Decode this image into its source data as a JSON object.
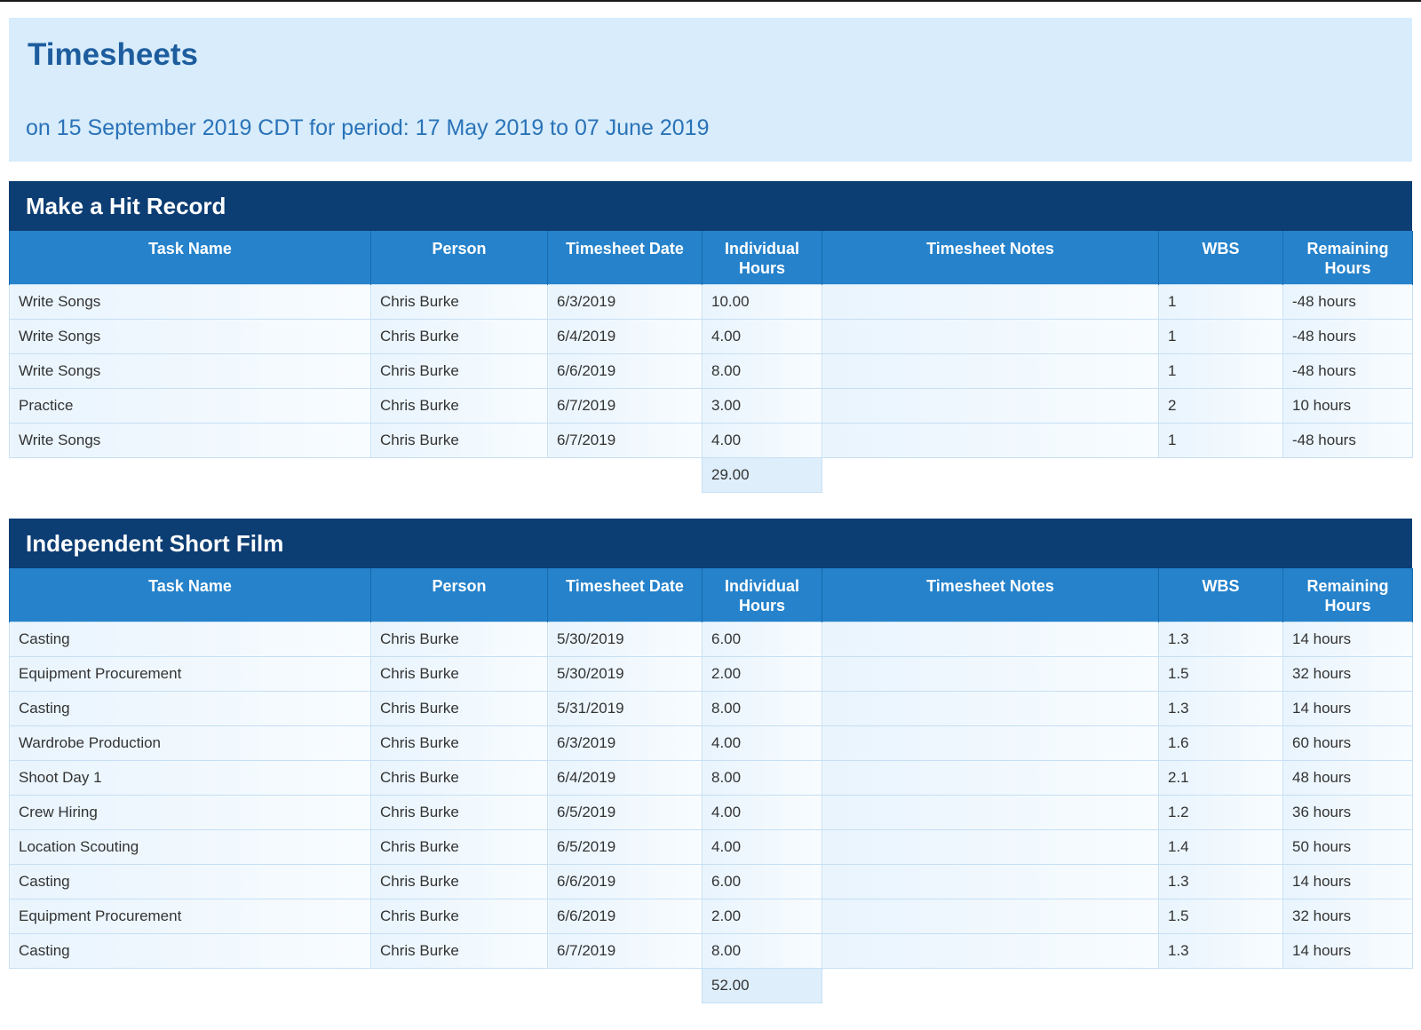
{
  "header": {
    "title": "Timesheets",
    "subtitle": "on 15 September 2019 CDT for period: 17 May 2019 to 07 June 2019"
  },
  "columns": {
    "task": "Task Name",
    "person": "Person",
    "date": "Timesheet Date",
    "hours_line1": "Individual",
    "hours_line2": "Hours",
    "notes": "Timesheet Notes",
    "wbs": "WBS",
    "remaining_line1": "Remaining",
    "remaining_line2": "Hours"
  },
  "projects": [
    {
      "name": "Make a Hit Record",
      "total": "29.00",
      "rows": [
        {
          "task": "Write Songs",
          "person": "Chris Burke",
          "date": "6/3/2019",
          "hours": "10.00",
          "notes": "",
          "wbs": "1",
          "remaining": "-48 hours"
        },
        {
          "task": "Write Songs",
          "person": "Chris Burke",
          "date": "6/4/2019",
          "hours": "4.00",
          "notes": "",
          "wbs": "1",
          "remaining": "-48 hours"
        },
        {
          "task": "Write Songs",
          "person": "Chris Burke",
          "date": "6/6/2019",
          "hours": "8.00",
          "notes": "",
          "wbs": "1",
          "remaining": "-48 hours"
        },
        {
          "task": "Practice",
          "person": "Chris Burke",
          "date": "6/7/2019",
          "hours": "3.00",
          "notes": "",
          "wbs": "2",
          "remaining": "10 hours"
        },
        {
          "task": "Write Songs",
          "person": "Chris Burke",
          "date": "6/7/2019",
          "hours": "4.00",
          "notes": "",
          "wbs": "1",
          "remaining": "-48 hours"
        }
      ]
    },
    {
      "name": "Independent Short Film",
      "total": "52.00",
      "rows": [
        {
          "task": "Casting",
          "person": "Chris Burke",
          "date": "5/30/2019",
          "hours": "6.00",
          "notes": "",
          "wbs": "1.3",
          "remaining": "14 hours"
        },
        {
          "task": "Equipment Procurement",
          "person": "Chris Burke",
          "date": "5/30/2019",
          "hours": "2.00",
          "notes": "",
          "wbs": "1.5",
          "remaining": "32 hours"
        },
        {
          "task": "Casting",
          "person": "Chris Burke",
          "date": "5/31/2019",
          "hours": "8.00",
          "notes": "",
          "wbs": "1.3",
          "remaining": "14 hours"
        },
        {
          "task": "Wardrobe Production",
          "person": "Chris Burke",
          "date": "6/3/2019",
          "hours": "4.00",
          "notes": "",
          "wbs": "1.6",
          "remaining": "60 hours"
        },
        {
          "task": "Shoot Day 1",
          "person": "Chris Burke",
          "date": "6/4/2019",
          "hours": "8.00",
          "notes": "",
          "wbs": "2.1",
          "remaining": "48 hours"
        },
        {
          "task": "Crew Hiring",
          "person": "Chris Burke",
          "date": "6/5/2019",
          "hours": "4.00",
          "notes": "",
          "wbs": "1.2",
          "remaining": "36 hours"
        },
        {
          "task": "Location Scouting",
          "person": "Chris Burke",
          "date": "6/5/2019",
          "hours": "4.00",
          "notes": "",
          "wbs": "1.4",
          "remaining": "50 hours"
        },
        {
          "task": "Casting",
          "person": "Chris Burke",
          "date": "6/6/2019",
          "hours": "6.00",
          "notes": "",
          "wbs": "1.3",
          "remaining": "14 hours"
        },
        {
          "task": "Equipment Procurement",
          "person": "Chris Burke",
          "date": "6/6/2019",
          "hours": "2.00",
          "notes": "",
          "wbs": "1.5",
          "remaining": "32 hours"
        },
        {
          "task": "Casting",
          "person": "Chris Burke",
          "date": "6/7/2019",
          "hours": "8.00",
          "notes": "",
          "wbs": "1.3",
          "remaining": "14 hours"
        }
      ]
    }
  ]
}
